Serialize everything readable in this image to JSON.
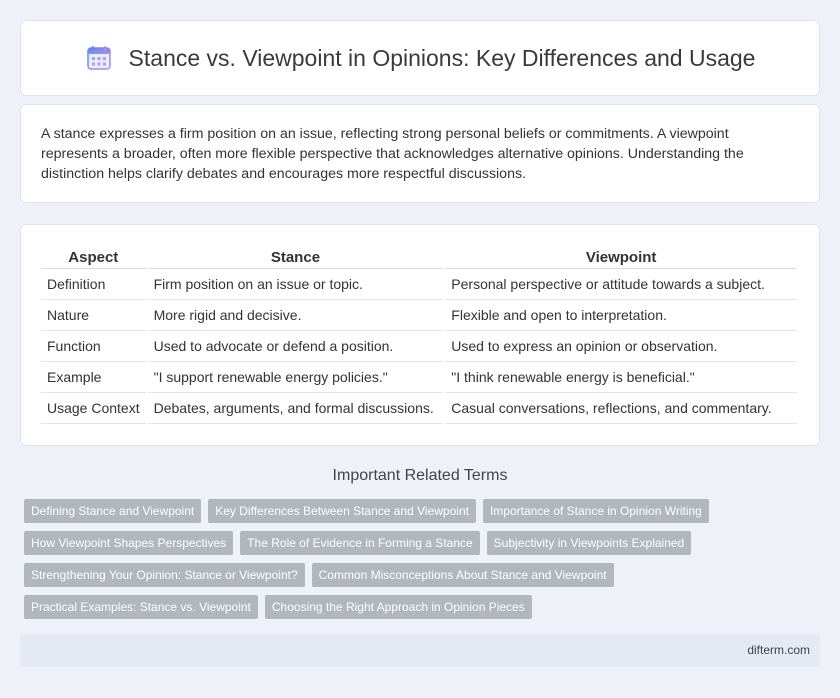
{
  "header": {
    "icon": "calendar-icon",
    "title": "Stance vs. Viewpoint in Opinions: Key Differences and Usage"
  },
  "intro": {
    "text": "A stance expresses a firm position on an issue, reflecting strong personal beliefs or commitments. A viewpoint represents a broader, often more flexible perspective that acknowledges alternative opinions. Understanding the distinction helps clarify debates and encourages more respectful discussions."
  },
  "table": {
    "headers": [
      "Aspect",
      "Stance",
      "Viewpoint"
    ],
    "rows": [
      [
        "Definition",
        "Firm position on an issue or topic.",
        "Personal perspective or attitude towards a subject."
      ],
      [
        "Nature",
        "More rigid and decisive.",
        "Flexible and open to interpretation."
      ],
      [
        "Function",
        "Used to advocate or defend a position.",
        "Used to express an opinion or observation."
      ],
      [
        "Example",
        "\"I support renewable energy policies.\"",
        "\"I think renewable energy is beneficial.\""
      ],
      [
        "Usage Context",
        "Debates, arguments, and formal discussions.",
        "Casual conversations, reflections, and commentary."
      ]
    ]
  },
  "related": {
    "title": "Important Related Terms",
    "tag_rows": [
      [
        "Defining Stance and Viewpoint",
        "Key Differences Between Stance and Viewpoint",
        "Importance of Stance in Opinion Writing"
      ],
      [
        "How Viewpoint Shapes Perspectives",
        "The Role of Evidence in Forming a Stance",
        "Subjectivity in Viewpoints Explained"
      ],
      [
        "Strengthening Your Opinion: Stance or Viewpoint?",
        "Common Misconceptions About Stance and Viewpoint"
      ],
      [
        "Practical Examples: Stance vs. Viewpoint",
        "Choosing the Right Approach in Opinion Pieces"
      ]
    ]
  },
  "footer": {
    "site": "difterm.com"
  },
  "colors": {
    "background": "#eef2f8",
    "tag_background": "#b1b7bf",
    "footer_background": "#e4e9f4",
    "icon_blue": "#5b8de8",
    "icon_purple": "#b48ae8"
  }
}
